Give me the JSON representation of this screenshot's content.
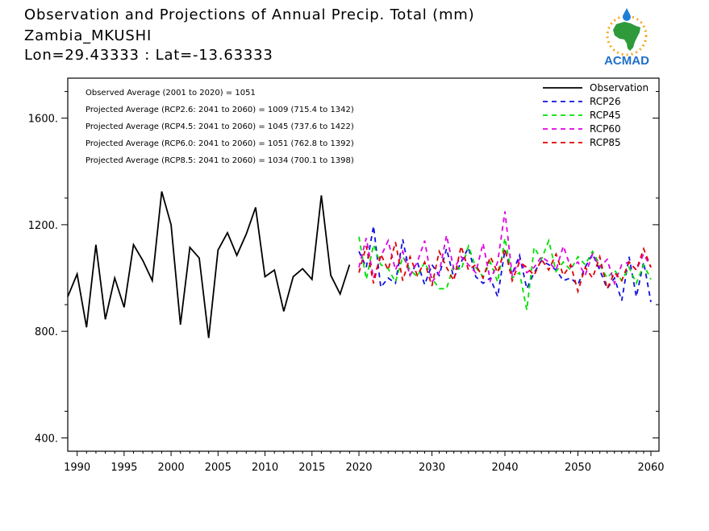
{
  "header": {
    "title": "Observation and Projections of Annual Precip. Total (mm)",
    "station": "Zambia_MKUSHI",
    "coords": "Lon=29.43333 : Lat=-13.63333"
  },
  "logo": {
    "text": "ACMAD",
    "icon": "africa-map-sun-logo"
  },
  "annotations": [
    "Observed Average (2001 to 2020) = 1051",
    "Projected Average (RCP2.6: 2041 to 2060) = 1009 (715.4 to 1342)",
    "Projected Average (RCP4.5: 2041 to 2060) = 1045 (737.6 to 1422)",
    "Projected Average (RCP6.0: 2041 to 2060) = 1051 (762.8 to 1392)",
    "Projected Average (RCP8.5: 2041 to 2060) = 1034 (700.1 to 1398)"
  ],
  "colors": {
    "Observation": "#000000",
    "RCP26": "#1010e0",
    "RCP45": "#00e000",
    "RCP60": "#e000e0",
    "RCP85": "#e00000"
  },
  "chart_data": {
    "type": "line",
    "xlim": [
      1989,
      2060
    ],
    "ylim": [
      350,
      1750
    ],
    "xticks": [
      1990,
      1995,
      2000,
      2005,
      2010,
      2015,
      2020,
      2030,
      2040,
      2050,
      2060
    ],
    "xtick_labels": [
      "1990",
      "1995",
      "2000",
      "2005",
      "2010",
      "2015",
      "2020",
      "2030",
      "2040",
      "2050",
      "2060"
    ],
    "yticks": [
      400,
      800,
      1200,
      1600
    ],
    "ytick_labels": [
      "400.",
      "800.",
      "1200.",
      "1600."
    ],
    "legend_position": "top-right",
    "series": [
      {
        "name": "Observation",
        "style": "solid",
        "x": [
          1989,
          1990,
          1991,
          1992,
          1993,
          1994,
          1995,
          1996,
          1997,
          1998,
          1999,
          2000,
          2001,
          2002,
          2003,
          2004,
          2005,
          2006,
          2007,
          2008,
          2009,
          2010,
          2011,
          2012,
          2013,
          2014,
          2015,
          2016,
          2017,
          2018,
          2019
        ],
        "values": [
          930,
          1015,
          815,
          1125,
          845,
          1000,
          890,
          1125,
          1065,
          990,
          1325,
          1200,
          825,
          1115,
          1075,
          775,
          1105,
          1170,
          1085,
          1165,
          1265,
          1005,
          1030,
          875,
          1005,
          1035,
          995,
          1310,
          1010,
          940,
          1050
        ]
      },
      {
        "name": "RCP26",
        "style": "dashed",
        "x": [
          2020,
          2021,
          2022,
          2023,
          2024,
          2025,
          2026,
          2027,
          2028,
          2029,
          2030,
          2031,
          2032,
          2033,
          2034,
          2035,
          2036,
          2037,
          2038,
          2039,
          2040,
          2041,
          2042,
          2043,
          2044,
          2045,
          2046,
          2047,
          2048,
          2049,
          2050,
          2051,
          2052,
          2053,
          2054,
          2055,
          2056,
          2057,
          2058,
          2059,
          2060
        ],
        "values": [
          1100,
          1040,
          1195,
          965,
          1000,
          980,
          1145,
          1010,
          1060,
          975,
          1050,
          1010,
          1110,
          1000,
          1060,
          1115,
          1005,
          980,
          1000,
          930,
          1105,
          1015,
          1085,
          960,
          1020,
          1065,
          1050,
          1030,
          990,
          1000,
          975,
          1040,
          1090,
          1030,
          960,
          1000,
          915,
          1080,
          930,
          1060,
          910
        ]
      },
      {
        "name": "RCP45",
        "style": "dashed",
        "x": [
          2020,
          2021,
          2022,
          2023,
          2024,
          2025,
          2026,
          2027,
          2028,
          2029,
          2030,
          2031,
          2032,
          2033,
          2034,
          2035,
          2036,
          2037,
          2038,
          2039,
          2040,
          2041,
          2042,
          2043,
          2044,
          2045,
          2046,
          2047,
          2048,
          2049,
          2050,
          2051,
          2052,
          2053,
          2054,
          2055,
          2056,
          2057,
          2058,
          2059,
          2060
        ],
        "values": [
          1155,
          995,
          1125,
          1050,
          1035,
          985,
          1080,
          1030,
          1005,
          1060,
          1000,
          960,
          960,
          1050,
          1030,
          1120,
          1040,
          1005,
          1060,
          985,
          1150,
          1000,
          1020,
          880,
          1115,
          1070,
          1140,
          1025,
          1060,
          1030,
          1080,
          1050,
          1100,
          1050,
          1000,
          1030,
          990,
          1040,
          980,
          1050,
          995
        ]
      },
      {
        "name": "RCP60",
        "style": "dashed",
        "x": [
          2020,
          2021,
          2022,
          2023,
          2024,
          2025,
          2026,
          2027,
          2028,
          2029,
          2030,
          2031,
          2032,
          2033,
          2034,
          2035,
          2036,
          2037,
          2038,
          2039,
          2040,
          2041,
          2042,
          2043,
          2044,
          2045,
          2046,
          2047,
          2048,
          2049,
          2050,
          2051,
          2052,
          2053,
          2054,
          2055,
          2056,
          2057,
          2058,
          2059,
          2060
        ],
        "values": [
          1040,
          1150,
          1000,
          1080,
          1140,
          1030,
          1100,
          1010,
          1060,
          1140,
          985,
          1020,
          1160,
          1035,
          1080,
          1050,
          1020,
          1130,
          990,
          1060,
          1250,
          1010,
          1070,
          1020,
          1040,
          1080,
          1060,
          1030,
          1120,
          1040,
          1060,
          1010,
          1090,
          1040,
          1070,
          980,
          1050,
          1060,
          1030,
          1090,
          1040
        ]
      },
      {
        "name": "RCP85",
        "style": "dashed",
        "x": [
          2020,
          2021,
          2022,
          2023,
          2024,
          2025,
          2026,
          2027,
          2028,
          2029,
          2030,
          2031,
          2032,
          2033,
          2034,
          2035,
          2036,
          2037,
          2038,
          2039,
          2040,
          2041,
          2042,
          2043,
          2044,
          2045,
          2046,
          2047,
          2048,
          2049,
          2050,
          2051,
          2052,
          2053,
          2054,
          2055,
          2056,
          2057,
          2058,
          2059,
          2060
        ],
        "values": [
          1020,
          1120,
          980,
          1090,
          1030,
          1135,
          990,
          1080,
          1010,
          1060,
          970,
          1100,
          1040,
          990,
          1120,
          1030,
          1050,
          1000,
          1080,
          1020,
          1110,
          990,
          1060,
          1040,
          1010,
          1070,
          1030,
          1090,
          1010,
          1050,
          950,
          1040,
          1000,
          1080,
          960,
          1020,
          990,
          1060,
          1030,
          1110,
          1040
        ]
      }
    ]
  }
}
